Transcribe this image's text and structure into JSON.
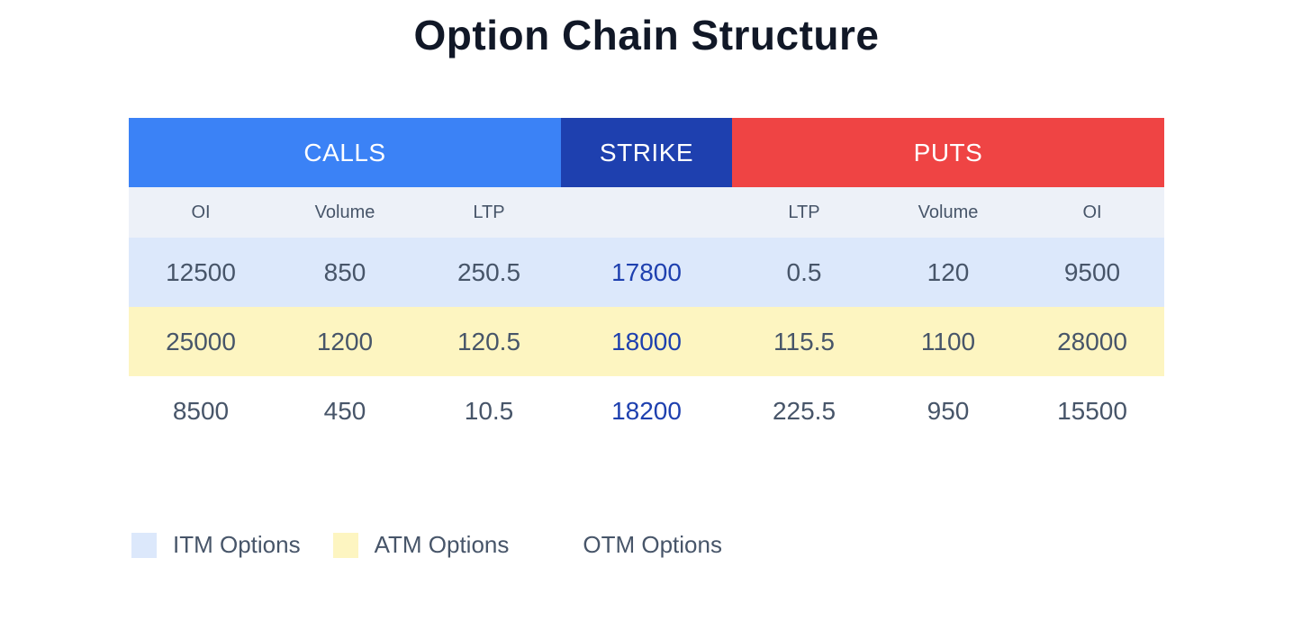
{
  "title": "Option Chain Structure",
  "header_groups": {
    "calls": {
      "label": "CALLS",
      "color": "#3b82f6"
    },
    "strike": {
      "label": "STRIKE",
      "color": "#1e40af"
    },
    "puts": {
      "label": "PUTS",
      "color": "#ef4444"
    }
  },
  "subheaders": [
    "OI",
    "Volume",
    "LTP",
    "",
    "LTP",
    "Volume",
    "OI"
  ],
  "rows": [
    {
      "moneyness": "ITM",
      "bg": "#dce8fb",
      "cells": [
        "12500",
        "850",
        "250.5",
        "17800",
        "0.5",
        "120",
        "9500"
      ]
    },
    {
      "moneyness": "ATM",
      "bg": "#fdf5c1",
      "cells": [
        "25000",
        "1200",
        "120.5",
        "18000",
        "115.5",
        "1100",
        "28000"
      ]
    },
    {
      "moneyness": "OTM",
      "bg": "#ffffff",
      "cells": [
        "8500",
        "450",
        "10.5",
        "18200",
        "225.5",
        "950",
        "15500"
      ]
    }
  ],
  "legend": [
    {
      "label": "ITM Options",
      "color": "#dce8fb"
    },
    {
      "label": "ATM Options",
      "color": "#fdf5c1"
    },
    {
      "label": "OTM Options",
      "color": "#ffffff"
    }
  ],
  "colors": {
    "calls_header": "#3b82f6",
    "strike_header": "#1e40af",
    "puts_header": "#ef4444",
    "subheader_bg": "#edf1f8",
    "strike_text": "#1e40af",
    "data_text": "#475569",
    "title_text": "#111827"
  },
  "chart_data": {
    "type": "table",
    "title": "Option Chain Structure",
    "column_groups": [
      "CALLS",
      "STRIKE",
      "PUTS"
    ],
    "columns": [
      "Calls OI",
      "Calls Volume",
      "Calls LTP",
      "Strike",
      "Puts LTP",
      "Puts Volume",
      "Puts OI"
    ],
    "rows": [
      {
        "moneyness": "ITM",
        "calls_oi": 12500,
        "calls_volume": 850,
        "calls_ltp": 250.5,
        "strike": 17800,
        "puts_ltp": 0.5,
        "puts_volume": 120,
        "puts_oi": 9500
      },
      {
        "moneyness": "ATM",
        "calls_oi": 25000,
        "calls_volume": 1200,
        "calls_ltp": 120.5,
        "strike": 18000,
        "puts_ltp": 115.5,
        "puts_volume": 1100,
        "puts_oi": 28000
      },
      {
        "moneyness": "OTM",
        "calls_oi": 8500,
        "calls_volume": 450,
        "calls_ltp": 10.5,
        "strike": 18200,
        "puts_ltp": 225.5,
        "puts_volume": 950,
        "puts_oi": 15500
      }
    ],
    "legend": [
      "ITM Options",
      "ATM Options",
      "OTM Options"
    ],
    "layout_hints": {
      "legend_position": "bottom-left",
      "grid": false
    }
  }
}
